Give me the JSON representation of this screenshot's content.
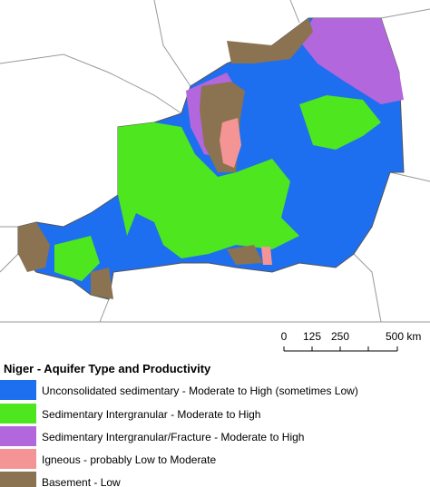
{
  "map": {
    "scale_bar": {
      "labels": [
        "0",
        "125",
        "250",
        "500 km"
      ]
    },
    "legend": {
      "title": "Niger - Aquifer Type and Productivity",
      "items": [
        {
          "label": "Unconsolidated sedimentary - Moderate to High (sometimes Low)",
          "color": "#1e6ef0"
        },
        {
          "label": "Sedimentary Intergranular - Moderate to High",
          "color": "#4ee61e"
        },
        {
          "label": "Sedimentary Intergranular/Fracture - Moderate to High",
          "color": "#b267dc"
        },
        {
          "label": "Igneous - probably Low to Moderate",
          "color": "#f49494"
        },
        {
          "label": "Basement - Low",
          "color": "#8b7250"
        }
      ]
    }
  }
}
